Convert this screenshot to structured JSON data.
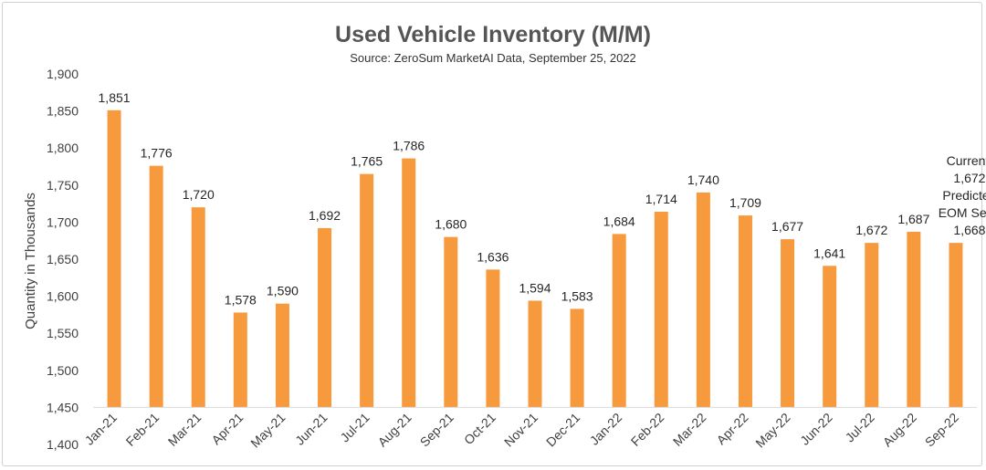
{
  "chart_data": {
    "type": "bar",
    "title": "Used Vehicle Inventory (M/M)",
    "subtitle": "Source: ZeroSum MarketAI Data, September 25, 2022",
    "ylabel": "Quantity in Thousands",
    "xlabel": "",
    "ylim": [
      1400,
      1900
    ],
    "yticks": [
      "1,400",
      "1,450",
      "1,500",
      "1,550",
      "1,600",
      "1,650",
      "1,700",
      "1,750",
      "1,800",
      "1,850",
      "1,900"
    ],
    "categories": [
      "Jan-21",
      "Feb-21",
      "Mar-21",
      "Apr-21",
      "May-21",
      "Jun-21",
      "Jul-21",
      "Aug-21",
      "Sep-21",
      "Oct-21",
      "Nov-21",
      "Dec-21",
      "Jan-22",
      "Feb-22",
      "Mar-22",
      "Apr-22",
      "May-22",
      "Jun-22",
      "Jul-22",
      "Aug-22",
      "Sep-22"
    ],
    "values": [
      1851,
      1776,
      1720,
      1578,
      1590,
      1692,
      1765,
      1786,
      1680,
      1636,
      1594,
      1583,
      1684,
      1714,
      1740,
      1709,
      1677,
      1641,
      1672,
      1687,
      1672
    ],
    "data_labels": [
      "1,851",
      "1,776",
      "1,720",
      "1,578",
      "1,590",
      "1,692",
      "1,765",
      "1,786",
      "1,680",
      "1,636",
      "1,594",
      "1,583",
      "1,684",
      "1,714",
      "1,740",
      "1,709",
      "1,677",
      "1,641",
      "1,672",
      "1,687",
      ""
    ],
    "annotation": [
      "Current:",
      "1,672",
      "Predicted",
      "EOM Sept:",
      "1,668"
    ],
    "bar_color": "#f79a3e",
    "grid": false
  }
}
